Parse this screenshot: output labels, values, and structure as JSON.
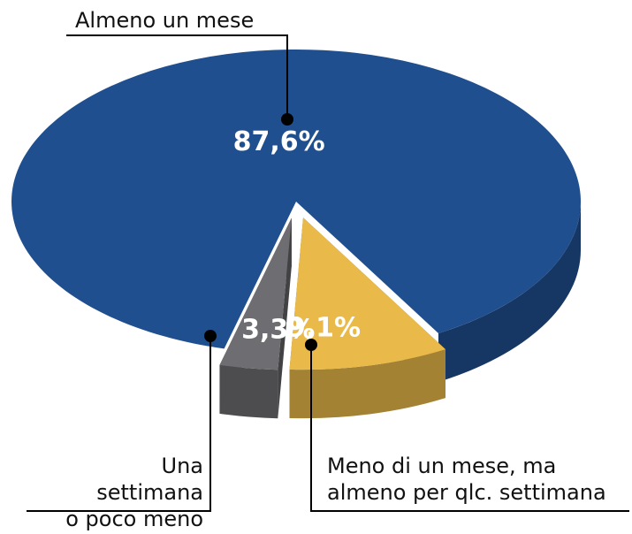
{
  "chart_data": {
    "type": "pie",
    "categories": [
      "Almeno un mese",
      "Meno di un mese, ma\nalmeno per qlc. settimana",
      "Una\nsettimana\no poco meno"
    ],
    "values": [
      87.6,
      9.1,
      3.3
    ],
    "value_labels": [
      "87,6%",
      "9,1%",
      "3,3%"
    ],
    "colors": [
      "#1f4f8f",
      "#e9b94a",
      "#6e6e72"
    ]
  }
}
